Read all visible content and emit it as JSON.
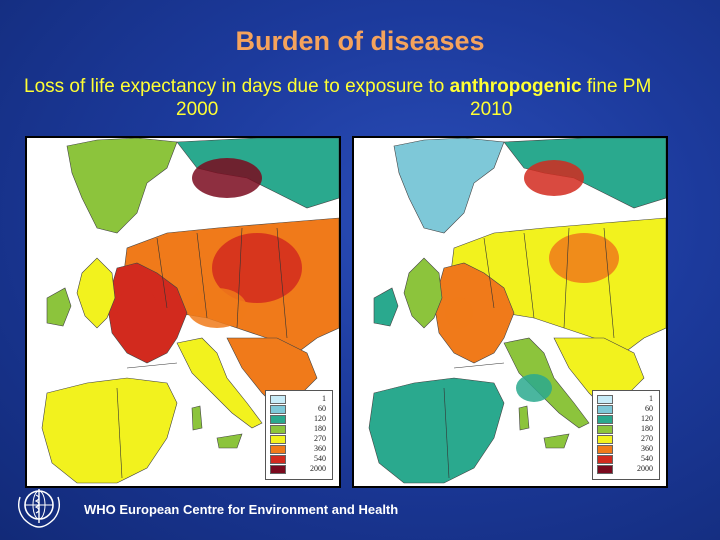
{
  "title": "Burden of diseases",
  "subtitle": {
    "prefix": "Loss of life expectancy in days due to exposure to ",
    "bold": "anthropogenic",
    "suffix": " fine PM"
  },
  "maps": [
    {
      "year": "2000",
      "scenario": "high"
    },
    {
      "year": "2010",
      "scenario": "low"
    }
  ],
  "legend": {
    "entries": [
      {
        "label": "1",
        "color": "#c8ecf8"
      },
      {
        "label": "60",
        "color": "#7ec8d8"
      },
      {
        "label": "120",
        "color": "#2aa98e"
      },
      {
        "label": "180",
        "color": "#8cc43c"
      },
      {
        "label": "270",
        "color": "#f2f21e"
      },
      {
        "label": "360",
        "color": "#f07a1a"
      },
      {
        "label": "540",
        "color": "#d22a1e"
      },
      {
        "label": "2000",
        "color": "#7a0a1e"
      }
    ]
  },
  "footer": "WHO European Centre for Environment and Health",
  "colors": {
    "background": "#1c3a9c",
    "title": "#f5a35c",
    "subtitle": "#ffff33"
  }
}
